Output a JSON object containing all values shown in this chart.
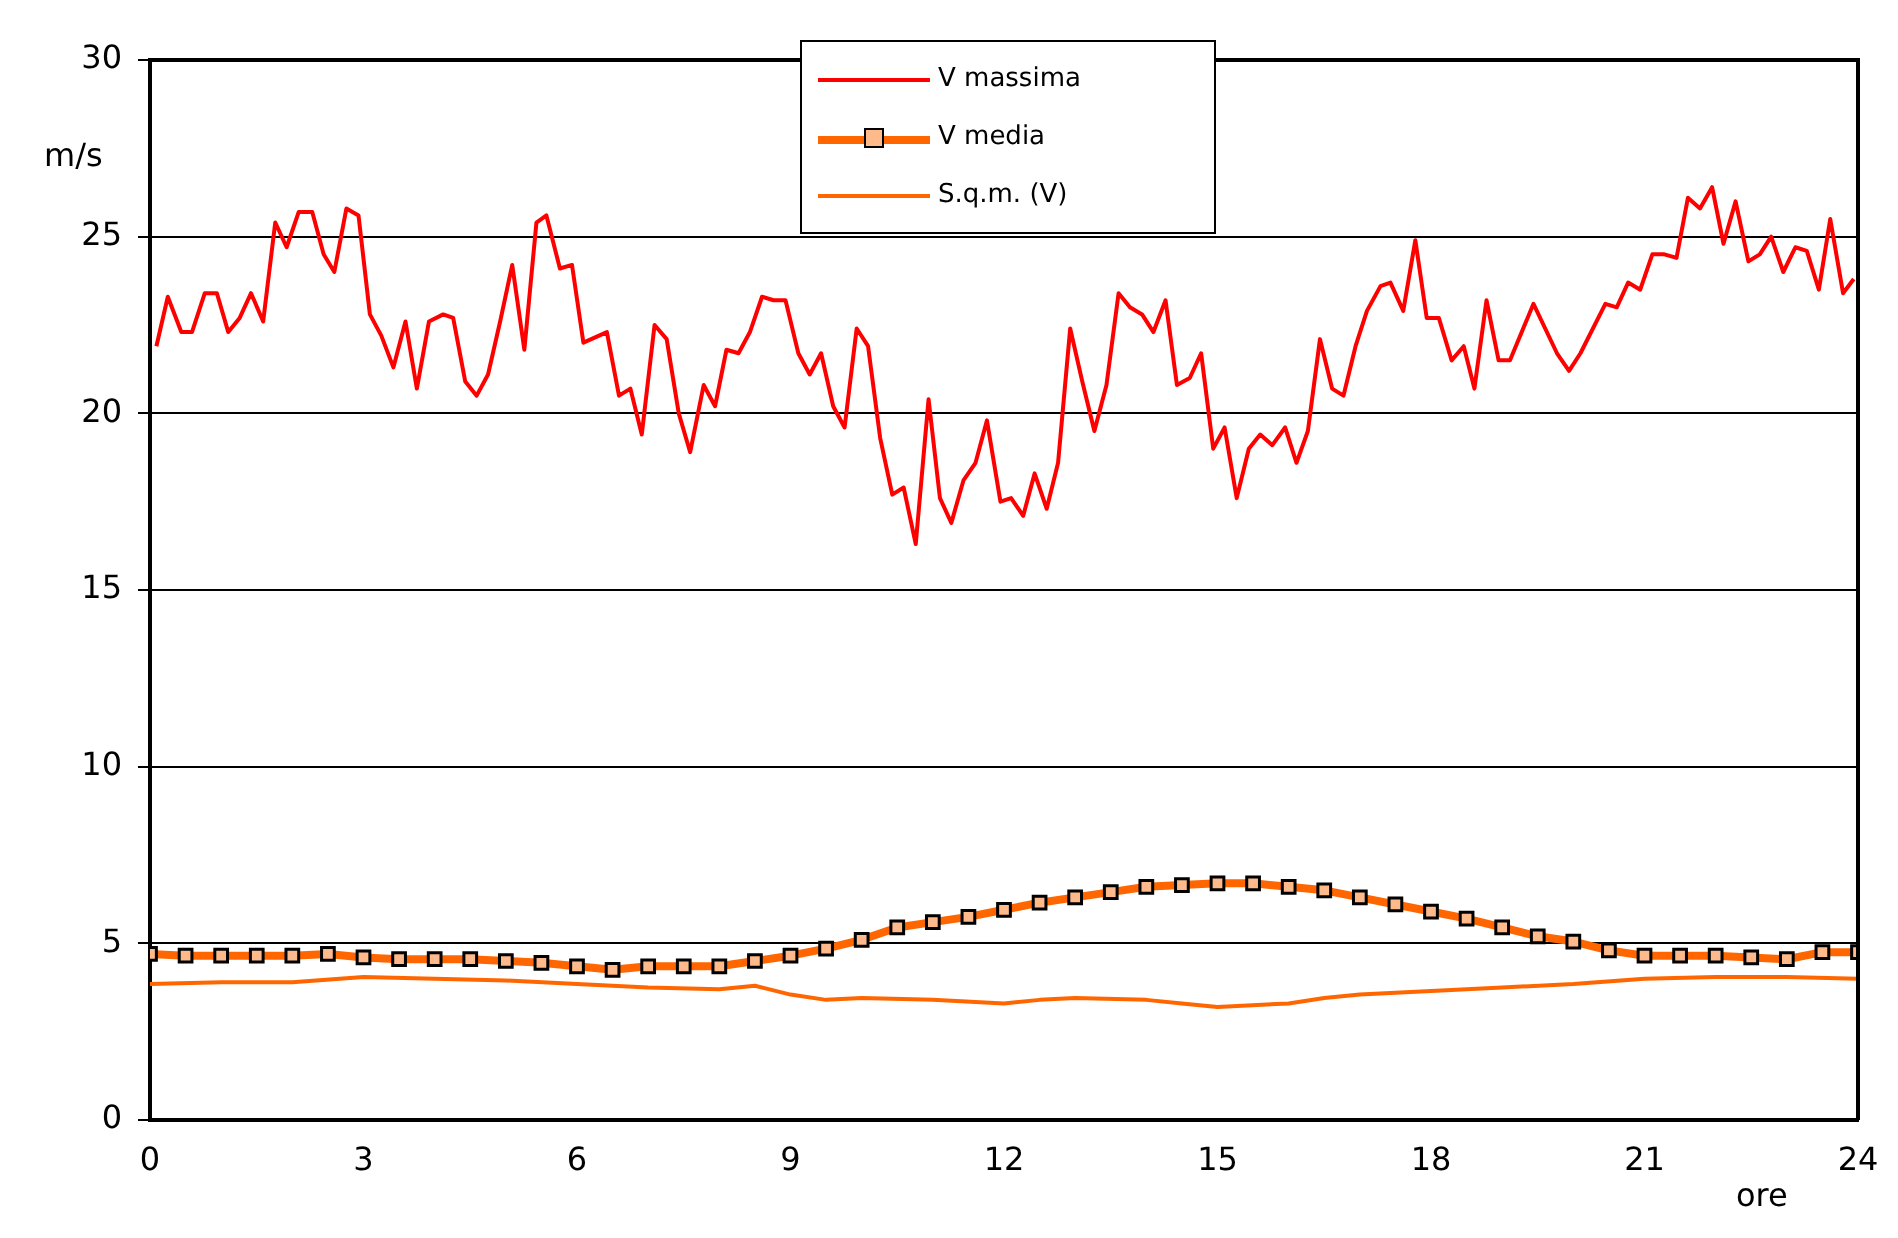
{
  "chart_data": {
    "type": "line",
    "xlabel": "ore",
    "ylabel": "m/s",
    "xlim": [
      0,
      24
    ],
    "ylim": [
      0,
      30
    ],
    "xticks": [
      0,
      3,
      6,
      9,
      12,
      15,
      18,
      21,
      24
    ],
    "yticks": [
      0,
      5,
      10,
      15,
      20,
      25,
      30
    ],
    "grid": "y",
    "legend": "top",
    "series": [
      {
        "name": "V massima",
        "color": "#ff0000",
        "marker": "none",
        "x": [
          0.09,
          0.25,
          0.44,
          0.59,
          0.77,
          0.94,
          1.1,
          1.26,
          1.42,
          1.59,
          1.76,
          1.92,
          2.09,
          2.28,
          2.44,
          2.59,
          2.76,
          2.93,
          3.09,
          3.25,
          3.42,
          3.59,
          3.75,
          3.92,
          4.12,
          4.26,
          4.43,
          4.59,
          4.75,
          4.92,
          5.09,
          5.26,
          5.43,
          5.57,
          5.76,
          5.93,
          6.09,
          6.42,
          6.59,
          6.75,
          6.91,
          7.09,
          7.26,
          7.43,
          7.59,
          7.78,
          7.94,
          8.1,
          8.27,
          8.43,
          8.6,
          8.76,
          8.93,
          9.11,
          9.27,
          9.43,
          9.6,
          9.76,
          9.93,
          10.09,
          10.26,
          10.43,
          10.59,
          10.76,
          10.94,
          11.1,
          11.26,
          11.43,
          11.6,
          11.76,
          11.95,
          12.1,
          12.27,
          12.43,
          12.6,
          12.76,
          12.93,
          13.1,
          13.27,
          13.44,
          13.61,
          13.77,
          13.94,
          14.1,
          14.27,
          14.43,
          14.61,
          14.77,
          14.94,
          15.1,
          15.27,
          15.44,
          15.6,
          15.77,
          15.95,
          16.11,
          16.27,
          16.44,
          16.61,
          16.77,
          16.94,
          17.1,
          17.29,
          17.43,
          17.61,
          17.78,
          17.94,
          18.11,
          18.29,
          18.46,
          18.61,
          18.78,
          18.95,
          19.11,
          19.44,
          19.77,
          19.94,
          20.1,
          20.45,
          20.61,
          20.77,
          20.94,
          21.11,
          21.28,
          21.45,
          21.61,
          21.78,
          21.95,
          22.11,
          22.28,
          22.46,
          22.62,
          22.78,
          22.95,
          23.12,
          23.28,
          23.45,
          23.61,
          23.79,
          23.94
        ],
        "values": [
          21.9,
          23.3,
          22.3,
          22.3,
          23.4,
          23.4,
          22.3,
          22.7,
          23.4,
          22.6,
          25.4,
          24.7,
          25.7,
          25.7,
          24.5,
          24,
          25.8,
          25.6,
          22.8,
          22.2,
          21.3,
          22.6,
          20.7,
          22.6,
          22.8,
          22.7,
          20.9,
          20.5,
          21.1,
          22.6,
          24.2,
          21.8,
          25.4,
          25.6,
          24.1,
          24.2,
          22,
          22.3,
          20.5,
          20.7,
          19.4,
          22.5,
          22.1,
          20,
          18.9,
          20.8,
          20.2,
          21.8,
          21.7,
          22.3,
          23.3,
          23.2,
          23.2,
          21.7,
          21.1,
          21.7,
          20.2,
          19.6,
          22.4,
          21.9,
          19.3,
          17.7,
          17.9,
          16.3,
          20.4,
          17.6,
          16.9,
          18.1,
          18.6,
          19.8,
          17.5,
          17.6,
          17.1,
          18.3,
          17.3,
          18.6,
          22.4,
          20.9,
          19.5,
          20.8,
          23.4,
          23,
          22.8,
          22.3,
          23.2,
          20.8,
          21,
          21.7,
          19,
          19.6,
          17.6,
          19,
          19.4,
          19.1,
          19.6,
          18.6,
          19.5,
          22.1,
          20.7,
          20.5,
          21.9,
          22.9,
          23.6,
          23.7,
          22.9,
          24.9,
          22.7,
          22.7,
          21.5,
          21.9,
          20.7,
          23.2,
          21.5,
          21.5,
          23.1,
          21.7,
          21.2,
          21.7,
          23.1,
          23,
          23.7,
          23.5,
          24.5,
          24.5,
          24.4,
          26.1,
          25.8,
          26.4,
          24.8,
          26,
          24.3,
          24.5,
          25,
          24,
          24.7,
          24.6,
          23.5,
          25.5,
          23.4,
          23.8
        ]
      },
      {
        "name": "V media",
        "color": "#ff6600",
        "marker": "square",
        "x": [
          0,
          0.5,
          1,
          1.5,
          2,
          2.5,
          3,
          3.5,
          4,
          4.5,
          5,
          5.5,
          6,
          6.5,
          7,
          7.5,
          8,
          8.5,
          9,
          9.5,
          10,
          10.5,
          11,
          11.5,
          12,
          12.5,
          13,
          13.5,
          14,
          14.5,
          15,
          15.5,
          16,
          16.5,
          17,
          17.5,
          18,
          18.5,
          19,
          19.5,
          20,
          20.5,
          21,
          21.5,
          22,
          22.5,
          23,
          23.5,
          24
        ],
        "values": [
          4.7,
          4.65,
          4.65,
          4.65,
          4.65,
          4.7,
          4.6,
          4.55,
          4.55,
          4.55,
          4.5,
          4.45,
          4.35,
          4.25,
          4.35,
          4.35,
          4.35,
          4.5,
          4.65,
          4.85,
          5.1,
          5.45,
          5.6,
          5.75,
          5.95,
          6.15,
          6.3,
          6.45,
          6.6,
          6.65,
          6.7,
          6.7,
          6.6,
          6.5,
          6.3,
          6.1,
          5.9,
          5.7,
          5.45,
          5.2,
          5.05,
          4.8,
          4.65,
          4.65,
          4.65,
          4.6,
          4.55,
          4.75,
          4.75
        ]
      },
      {
        "name": "S.q.m. (V)",
        "color": "#ff6600",
        "marker": "none",
        "x": [
          0,
          1,
          2,
          3,
          4,
          5,
          6,
          7,
          8,
          8.5,
          9,
          9.5,
          10,
          11,
          12,
          12.5,
          13,
          14,
          14.5,
          15,
          16,
          16.5,
          17,
          18,
          19,
          20,
          21,
          22,
          23,
          24
        ],
        "values": [
          3.85,
          3.9,
          3.9,
          4.05,
          4,
          3.95,
          3.85,
          3.75,
          3.7,
          3.8,
          3.55,
          3.4,
          3.45,
          3.4,
          3.3,
          3.4,
          3.45,
          3.4,
          3.3,
          3.2,
          3.3,
          3.45,
          3.55,
          3.65,
          3.75,
          3.85,
          4,
          4.05,
          4.05,
          4
        ]
      }
    ]
  }
}
